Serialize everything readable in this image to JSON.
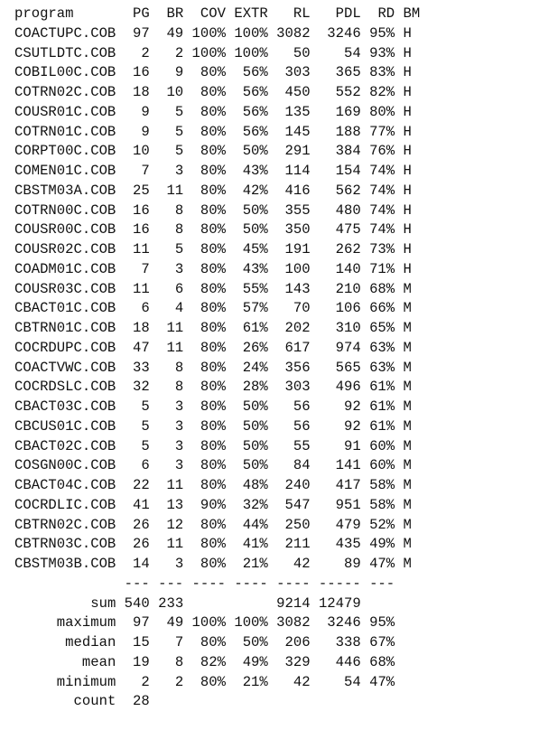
{
  "report": {
    "columns": [
      "program",
      "PG",
      "BR",
      "COV",
      "EXTR",
      "RL",
      "PDL",
      "RD",
      "BM"
    ],
    "rows": [
      {
        "program": "COACTUPC.COB",
        "PG": "97",
        "BR": "49",
        "COV": "100%",
        "EXTR": "100%",
        "RL": "3082",
        "PDL": "3246",
        "RD": "95%",
        "BM": "H"
      },
      {
        "program": "CSUTLDTC.COB",
        "PG": "2",
        "BR": "2",
        "COV": "100%",
        "EXTR": "100%",
        "RL": "50",
        "PDL": "54",
        "RD": "93%",
        "BM": "H"
      },
      {
        "program": "COBIL00C.COB",
        "PG": "16",
        "BR": "9",
        "COV": "80%",
        "EXTR": "56%",
        "RL": "303",
        "PDL": "365",
        "RD": "83%",
        "BM": "H"
      },
      {
        "program": "COTRN02C.COB",
        "PG": "18",
        "BR": "10",
        "COV": "80%",
        "EXTR": "56%",
        "RL": "450",
        "PDL": "552",
        "RD": "82%",
        "BM": "H"
      },
      {
        "program": "COUSR01C.COB",
        "PG": "9",
        "BR": "5",
        "COV": "80%",
        "EXTR": "56%",
        "RL": "135",
        "PDL": "169",
        "RD": "80%",
        "BM": "H"
      },
      {
        "program": "COTRN01C.COB",
        "PG": "9",
        "BR": "5",
        "COV": "80%",
        "EXTR": "56%",
        "RL": "145",
        "PDL": "188",
        "RD": "77%",
        "BM": "H"
      },
      {
        "program": "CORPT00C.COB",
        "PG": "10",
        "BR": "5",
        "COV": "80%",
        "EXTR": "50%",
        "RL": "291",
        "PDL": "384",
        "RD": "76%",
        "BM": "H"
      },
      {
        "program": "COMEN01C.COB",
        "PG": "7",
        "BR": "3",
        "COV": "80%",
        "EXTR": "43%",
        "RL": "114",
        "PDL": "154",
        "RD": "74%",
        "BM": "H"
      },
      {
        "program": "CBSTM03A.COB",
        "PG": "25",
        "BR": "11",
        "COV": "80%",
        "EXTR": "42%",
        "RL": "416",
        "PDL": "562",
        "RD": "74%",
        "BM": "H"
      },
      {
        "program": "COTRN00C.COB",
        "PG": "16",
        "BR": "8",
        "COV": "80%",
        "EXTR": "50%",
        "RL": "355",
        "PDL": "480",
        "RD": "74%",
        "BM": "H"
      },
      {
        "program": "COUSR00C.COB",
        "PG": "16",
        "BR": "8",
        "COV": "80%",
        "EXTR": "50%",
        "RL": "350",
        "PDL": "475",
        "RD": "74%",
        "BM": "H"
      },
      {
        "program": "COUSR02C.COB",
        "PG": "11",
        "BR": "5",
        "COV": "80%",
        "EXTR": "45%",
        "RL": "191",
        "PDL": "262",
        "RD": "73%",
        "BM": "H"
      },
      {
        "program": "COADM01C.COB",
        "PG": "7",
        "BR": "3",
        "COV": "80%",
        "EXTR": "43%",
        "RL": "100",
        "PDL": "140",
        "RD": "71%",
        "BM": "H"
      },
      {
        "program": "COUSR03C.COB",
        "PG": "11",
        "BR": "6",
        "COV": "80%",
        "EXTR": "55%",
        "RL": "143",
        "PDL": "210",
        "RD": "68%",
        "BM": "M"
      },
      {
        "program": "CBACT01C.COB",
        "PG": "6",
        "BR": "4",
        "COV": "80%",
        "EXTR": "57%",
        "RL": "70",
        "PDL": "106",
        "RD": "66%",
        "BM": "M"
      },
      {
        "program": "CBTRN01C.COB",
        "PG": "18",
        "BR": "11",
        "COV": "80%",
        "EXTR": "61%",
        "RL": "202",
        "PDL": "310",
        "RD": "65%",
        "BM": "M"
      },
      {
        "program": "COCRDUPC.COB",
        "PG": "47",
        "BR": "11",
        "COV": "80%",
        "EXTR": "26%",
        "RL": "617",
        "PDL": "974",
        "RD": "63%",
        "BM": "M"
      },
      {
        "program": "COACTVWC.COB",
        "PG": "33",
        "BR": "8",
        "COV": "80%",
        "EXTR": "24%",
        "RL": "356",
        "PDL": "565",
        "RD": "63%",
        "BM": "M"
      },
      {
        "program": "COCRDSLC.COB",
        "PG": "32",
        "BR": "8",
        "COV": "80%",
        "EXTR": "28%",
        "RL": "303",
        "PDL": "496",
        "RD": "61%",
        "BM": "M"
      },
      {
        "program": "CBACT03C.COB",
        "PG": "5",
        "BR": "3",
        "COV": "80%",
        "EXTR": "50%",
        "RL": "56",
        "PDL": "92",
        "RD": "61%",
        "BM": "M"
      },
      {
        "program": "CBCUS01C.COB",
        "PG": "5",
        "BR": "3",
        "COV": "80%",
        "EXTR": "50%",
        "RL": "56",
        "PDL": "92",
        "RD": "61%",
        "BM": "M"
      },
      {
        "program": "CBACT02C.COB",
        "PG": "5",
        "BR": "3",
        "COV": "80%",
        "EXTR": "50%",
        "RL": "55",
        "PDL": "91",
        "RD": "60%",
        "BM": "M"
      },
      {
        "program": "COSGN00C.COB",
        "PG": "6",
        "BR": "3",
        "COV": "80%",
        "EXTR": "50%",
        "RL": "84",
        "PDL": "141",
        "RD": "60%",
        "BM": "M"
      },
      {
        "program": "CBACT04C.COB",
        "PG": "22",
        "BR": "11",
        "COV": "80%",
        "EXTR": "48%",
        "RL": "240",
        "PDL": "417",
        "RD": "58%",
        "BM": "M"
      },
      {
        "program": "COCRDLIC.COB",
        "PG": "41",
        "BR": "13",
        "COV": "90%",
        "EXTR": "32%",
        "RL": "547",
        "PDL": "951",
        "RD": "58%",
        "BM": "M"
      },
      {
        "program": "CBTRN02C.COB",
        "PG": "26",
        "BR": "12",
        "COV": "80%",
        "EXTR": "44%",
        "RL": "250",
        "PDL": "479",
        "RD": "52%",
        "BM": "M"
      },
      {
        "program": "CBTRN03C.COB",
        "PG": "26",
        "BR": "11",
        "COV": "80%",
        "EXTR": "41%",
        "RL": "211",
        "PDL": "435",
        "RD": "49%",
        "BM": "M"
      },
      {
        "program": "CBSTM03B.COB",
        "PG": "14",
        "BR": "3",
        "COV": "80%",
        "EXTR": "21%",
        "RL": "42",
        "PDL": "89",
        "RD": "47%",
        "BM": "M"
      }
    ],
    "separator": {
      "PG": "---",
      "BR": "---",
      "COV": "----",
      "EXTR": "----",
      "RL": "----",
      "PDL": "-----",
      "RD": "---"
    },
    "summary": [
      {
        "label": "sum",
        "PG": "540",
        "BR": "233",
        "COV": "",
        "EXTR": "",
        "RL": "9214",
        "PDL": "12479",
        "RD": ""
      },
      {
        "label": "maximum",
        "PG": "97",
        "BR": "49",
        "COV": "100%",
        "EXTR": "100%",
        "RL": "3082",
        "PDL": "3246",
        "RD": "95%"
      },
      {
        "label": "median",
        "PG": "15",
        "BR": "7",
        "COV": "80%",
        "EXTR": "50%",
        "RL": "206",
        "PDL": "338",
        "RD": "67%"
      },
      {
        "label": "mean",
        "PG": "19",
        "BR": "8",
        "COV": "82%",
        "EXTR": "49%",
        "RL": "329",
        "PDL": "446",
        "RD": "68%"
      },
      {
        "label": "minimum",
        "PG": "2",
        "BR": "2",
        "COV": "80%",
        "EXTR": "21%",
        "RL": "42",
        "PDL": "54",
        "RD": "47%"
      },
      {
        "label": "count",
        "PG": "28",
        "BR": "",
        "COV": "",
        "EXTR": "",
        "RL": "",
        "PDL": "",
        "RD": ""
      }
    ]
  }
}
